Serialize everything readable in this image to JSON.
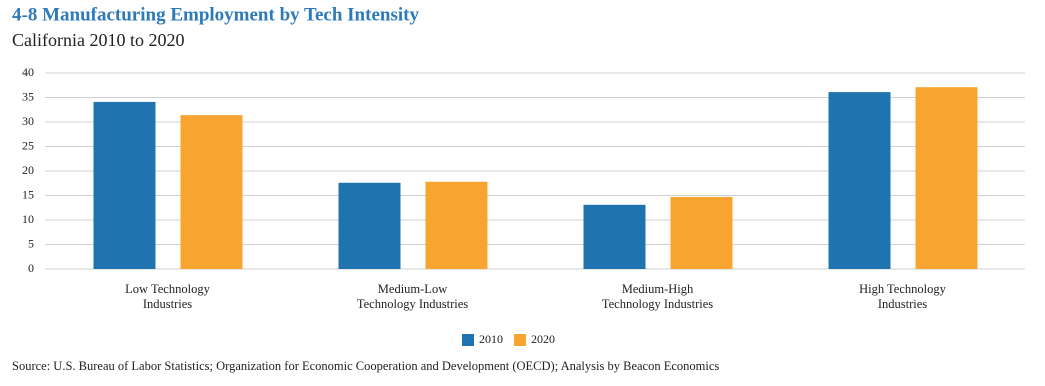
{
  "chart_data": {
    "type": "bar",
    "title": "4-8 Manufacturing Employment by Tech Intensity",
    "subtitle": "California 2010 to 2020",
    "categories": [
      "Low Technology\nIndustries",
      "Medium-Low\nTechnology Industries",
      "Medium-High\nTechnology Industries",
      "High Technology\nIndustries"
    ],
    "series": [
      {
        "name": "2010",
        "color": "#1f73ae",
        "values": [
          34.1,
          17.6,
          13.1,
          36.1
        ]
      },
      {
        "name": "2020",
        "color": "#f7a430",
        "values": [
          31.4,
          17.8,
          14.7,
          37.1
        ]
      }
    ],
    "ylim": [
      0,
      40
    ],
    "yticks": [
      0,
      5,
      10,
      15,
      20,
      25,
      30,
      35,
      40
    ],
    "grid": true,
    "legend": "bottom",
    "source": "Source: U.S. Bureau of Labor Statistics; Organization for Economic Cooperation and Development (OECD); Analysis by Beacon Economics"
  }
}
